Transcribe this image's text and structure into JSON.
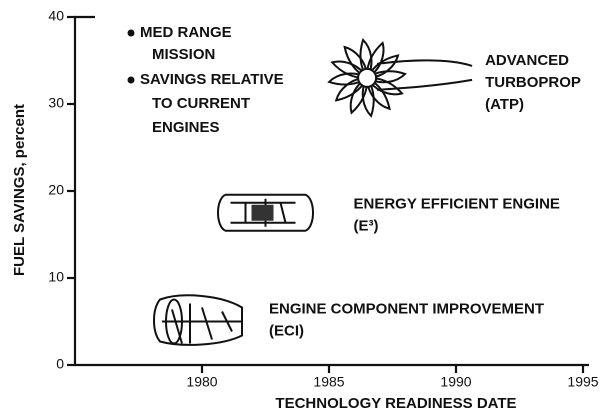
{
  "chart_data": {
    "type": "scatter",
    "x_label": "TECHNOLOGY READINESS DATE",
    "y_label": "FUEL SAVINGS, percent",
    "xlim": [
      1975,
      1995
    ],
    "xticks": [
      1980,
      1985,
      1990,
      1995
    ],
    "ylim": [
      0,
      40
    ],
    "yticks": [
      0,
      10,
      20,
      30,
      40
    ],
    "x": [
      1980,
      1982.5,
      1986.5
    ],
    "values": [
      5,
      17.5,
      33
    ],
    "point_labels": [
      [
        "ENGINE COMPONENT IMPROVEMENT",
        "(ECI)"
      ],
      [
        "ENERGY EFFICIENT ENGINE",
        "(E³)"
      ],
      [
        "ADVANCED",
        "TURBOPROP",
        "(ATP)"
      ]
    ],
    "notes": [
      [
        "MED RANGE",
        "MISSION"
      ],
      [
        "SAVINGS RELATIVE",
        "TO CURRENT",
        "ENGINES"
      ]
    ],
    "color": "#111111"
  }
}
